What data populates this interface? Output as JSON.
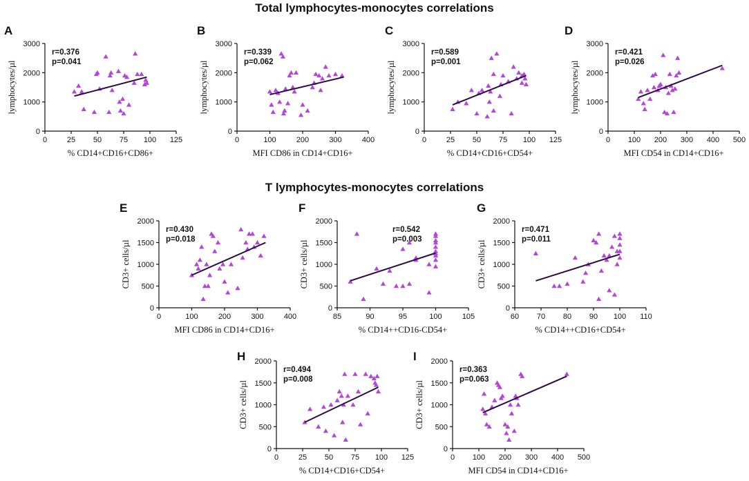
{
  "titles": {
    "total": "Total lymphocytes-monocytes  correlations",
    "t": "T lymphocytes-monocytes  correlations"
  },
  "colors": {
    "points": "#b146d9",
    "fit_line": "#2a0a45",
    "axis": "#111111"
  },
  "chart_data": [
    {
      "id": "A",
      "type": "scatter",
      "xlabel": "% CD14+CD16+CD86+",
      "ylabel": "lymphocytes/µl",
      "xlim": [
        0,
        125
      ],
      "ylim": [
        0,
        3000
      ],
      "xticks": [
        0,
        25,
        50,
        75,
        100,
        125
      ],
      "yticks": [
        0,
        1000,
        2000,
        3000
      ],
      "r": "r=0.376",
      "p": "p=0.041",
      "fit": [
        [
          28,
          1200
        ],
        [
          97,
          1850
        ]
      ],
      "x": [
        28,
        32,
        35,
        37,
        47,
        49,
        50,
        52,
        58,
        61,
        62,
        63,
        64,
        70,
        71,
        72,
        74,
        75,
        76,
        78,
        80,
        85,
        86,
        88,
        92,
        95,
        96,
        97
      ],
      "y": [
        1350,
        1550,
        1350,
        750,
        650,
        1950,
        2000,
        1450,
        2550,
        650,
        1900,
        2000,
        1400,
        2050,
        1000,
        700,
        1100,
        600,
        1900,
        1850,
        900,
        1650,
        2650,
        1950,
        1950,
        1600,
        1750,
        1650
      ]
    },
    {
      "id": "B",
      "type": "scatter",
      "xlabel": "MFI  CD86 in CD14+CD16+",
      "ylabel": "lymphocytes/µl",
      "xlim": [
        0,
        400
      ],
      "ylim": [
        0,
        3000
      ],
      "xticks": [
        0,
        100,
        200,
        300,
        400
      ],
      "yticks": [
        0,
        1000,
        2000,
        3000
      ],
      "r": "r=0.339",
      "p": "p=0.062",
      "fit": [
        [
          100,
          1250
        ],
        [
          325,
          1850
        ]
      ],
      "x": [
        100,
        105,
        110,
        118,
        125,
        130,
        135,
        140,
        142,
        145,
        148,
        155,
        160,
        165,
        170,
        175,
        180,
        195,
        200,
        215,
        230,
        235,
        240,
        250,
        255,
        260,
        270,
        280,
        300,
        320
      ],
      "y": [
        1350,
        900,
        650,
        1400,
        1300,
        1000,
        2650,
        2550,
        600,
        700,
        1450,
        950,
        1900,
        2000,
        1500,
        1350,
        2000,
        550,
        900,
        700,
        1500,
        1650,
        1950,
        1900,
        1400,
        1800,
        2200,
        1900,
        1950,
        1900
      ]
    },
    {
      "id": "C",
      "type": "scatter",
      "xlabel": "% CD14+CD16+CD54+",
      "ylabel": "lymphocytes/µl",
      "xlim": [
        0,
        125
      ],
      "ylim": [
        0,
        3000
      ],
      "xticks": [
        0,
        25,
        50,
        75,
        100,
        125
      ],
      "yticks": [
        0,
        1000,
        2000,
        3000
      ],
      "r": "r=0.589",
      "p": "p=0.001",
      "fit": [
        [
          27,
          900
        ],
        [
          97,
          1900
        ]
      ],
      "x": [
        27,
        32,
        40,
        45,
        50,
        52,
        55,
        60,
        61,
        62,
        63,
        64,
        66,
        66,
        69,
        72,
        73,
        75,
        80,
        83,
        85,
        88,
        90,
        93,
        93,
        95,
        96,
        97
      ],
      "y": [
        750,
        1000,
        950,
        1400,
        600,
        1300,
        1400,
        500,
        1550,
        1000,
        1350,
        2500,
        1950,
        700,
        2650,
        1200,
        1600,
        1900,
        1700,
        600,
        2200,
        1800,
        2000,
        1650,
        1900,
        1950,
        1800,
        1600
      ]
    },
    {
      "id": "D",
      "type": "scatter",
      "xlabel": "MFI CD54 in CD14+CD16+",
      "ylabel": "lymphocytes/µl",
      "xlim": [
        0,
        500
      ],
      "ylim": [
        0,
        3000
      ],
      "xticks": [
        0,
        100,
        200,
        300,
        400,
        500
      ],
      "yticks": [
        0,
        1000,
        2000,
        3000
      ],
      "r": "r=0.421",
      "p": "p=0.026",
      "fit": [
        [
          115,
          1150
        ],
        [
          435,
          2250
        ]
      ],
      "x": [
        115,
        125,
        135,
        140,
        150,
        160,
        170,
        175,
        180,
        190,
        195,
        200,
        210,
        215,
        220,
        225,
        230,
        235,
        240,
        245,
        250,
        255,
        260,
        265,
        270,
        435
      ],
      "y": [
        1100,
        1350,
        950,
        750,
        1400,
        1100,
        1900,
        1500,
        1950,
        1400,
        1550,
        1600,
        2600,
        650,
        1500,
        600,
        1300,
        1950,
        1550,
        1400,
        650,
        1450,
        1900,
        2500,
        2000,
        2150
      ]
    },
    {
      "id": "E",
      "type": "scatter",
      "xlabel": "MFI CD86 in CD14+CD16+",
      "ylabel": "CD3+ cells/µl",
      "xlim": [
        0,
        400
      ],
      "ylim": [
        0,
        2000
      ],
      "xticks": [
        0,
        100,
        200,
        300,
        400
      ],
      "yticks": [
        0,
        500,
        1000,
        1500,
        2000
      ],
      "r": "r=0.430",
      "p": "p=0.018",
      "fit": [
        [
          100,
          750
        ],
        [
          325,
          1500
        ]
      ],
      "x": [
        100,
        115,
        120,
        125,
        130,
        135,
        140,
        145,
        150,
        155,
        160,
        165,
        170,
        180,
        185,
        195,
        200,
        210,
        220,
        240,
        250,
        255,
        265,
        270,
        275,
        285,
        290,
        300,
        310,
        320
      ],
      "y": [
        750,
        1000,
        900,
        1100,
        1400,
        200,
        500,
        1000,
        500,
        750,
        1700,
        1650,
        1300,
        1500,
        900,
        1000,
        600,
        350,
        1000,
        450,
        1800,
        1150,
        1500,
        1350,
        1700,
        1700,
        1400,
        1500,
        1200,
        1650
      ]
    },
    {
      "id": "F",
      "type": "scatter",
      "xlabel": "% CD14++CD16-CD54+",
      "ylabel": "CD3+ cells/µl",
      "xlim": [
        85,
        105
      ],
      "ylim": [
        0,
        2000
      ],
      "xticks": [
        85,
        90,
        95,
        100,
        105
      ],
      "yticks": [
        0,
        500,
        1000,
        1500,
        2000
      ],
      "r": "r=0.542",
      "p": "p=0.003",
      "fit": [
        [
          87,
          620
        ],
        [
          100,
          1260
        ]
      ],
      "x": [
        87,
        88,
        89,
        91,
        92,
        93,
        94,
        95,
        95,
        96,
        96,
        97,
        97,
        99,
        99,
        100,
        100,
        100,
        100,
        100,
        100,
        100,
        100,
        100,
        100
      ],
      "y": [
        600,
        1700,
        200,
        900,
        550,
        850,
        500,
        500,
        1350,
        1500,
        550,
        1100,
        1150,
        1000,
        350,
        1700,
        1650,
        1550,
        1500,
        1400,
        1300,
        1200,
        1100,
        950,
        1250
      ]
    },
    {
      "id": "G",
      "type": "scatter",
      "xlabel": "% CD14++CD16+CD54+",
      "ylabel": "CD3+ cells/µl",
      "xlim": [
        60,
        110
      ],
      "ylim": [
        0,
        2000
      ],
      "xticks": [
        60,
        70,
        80,
        90,
        100,
        110
      ],
      "yticks": [
        0,
        500,
        1000,
        1500,
        2000
      ],
      "r": "r=0.471",
      "p": "p=0.011",
      "fit": [
        [
          68,
          620
        ],
        [
          100,
          1230
        ]
      ],
      "x": [
        68,
        75,
        77,
        80,
        83,
        86,
        87,
        88,
        90,
        91,
        92,
        92,
        93,
        94,
        95,
        96,
        96,
        97,
        98,
        98,
        99,
        99,
        100,
        100,
        100,
        100,
        100
      ],
      "y": [
        1250,
        500,
        500,
        550,
        1150,
        600,
        800,
        1000,
        1550,
        1500,
        200,
        1700,
        850,
        1200,
        1100,
        1200,
        400,
        1400,
        1650,
        300,
        1000,
        1300,
        1700,
        1600,
        1450,
        1300,
        1150
      ]
    },
    {
      "id": "H",
      "type": "scatter",
      "xlabel": "% CD14+CD16+CD54+",
      "ylabel": "CD3+ cells/µl",
      "xlim": [
        0,
        125
      ],
      "ylim": [
        0,
        2000
      ],
      "xticks": [
        0,
        25,
        50,
        75,
        100,
        125
      ],
      "yticks": [
        0,
        500,
        1000,
        1500,
        2000
      ],
      "r": "r=0.494",
      "p": "p=0.008",
      "fit": [
        [
          27,
          600
        ],
        [
          97,
          1400
        ]
      ],
      "x": [
        27,
        32,
        40,
        45,
        47,
        52,
        55,
        58,
        60,
        62,
        63,
        64,
        65,
        66,
        68,
        73,
        75,
        78,
        80,
        85,
        87,
        90,
        93,
        94,
        95,
        96,
        97
      ],
      "y": [
        600,
        900,
        500,
        950,
        400,
        1000,
        300,
        1100,
        1300,
        1200,
        600,
        1000,
        1700,
        200,
        1200,
        1000,
        1700,
        1300,
        550,
        1700,
        800,
        1650,
        1600,
        1500,
        1450,
        1650,
        1300
      ]
    },
    {
      "id": "I",
      "type": "scatter",
      "xlabel": "MFI CD54 in CD14+CD16+",
      "ylabel": "CD3+ cells/µl",
      "xlim": [
        0,
        500
      ],
      "ylim": [
        0,
        2000
      ],
      "xticks": [
        0,
        100,
        200,
        300,
        400,
        500
      ],
      "yticks": [
        0,
        500,
        1000,
        1500,
        2000
      ],
      "r": "r=0.363",
      "p": "p=0.063",
      "fit": [
        [
          115,
          820
        ],
        [
          435,
          1650
        ]
      ],
      "x": [
        115,
        120,
        125,
        130,
        140,
        150,
        160,
        170,
        175,
        180,
        185,
        190,
        200,
        205,
        210,
        215,
        220,
        225,
        235,
        240,
        245,
        250,
        260,
        265,
        435
      ],
      "y": [
        900,
        1250,
        800,
        550,
        500,
        950,
        1100,
        1500,
        1450,
        1400,
        1150,
        1200,
        550,
        350,
        500,
        200,
        1000,
        800,
        400,
        1200,
        1150,
        1000,
        1700,
        1650,
        1700
      ]
    }
  ]
}
